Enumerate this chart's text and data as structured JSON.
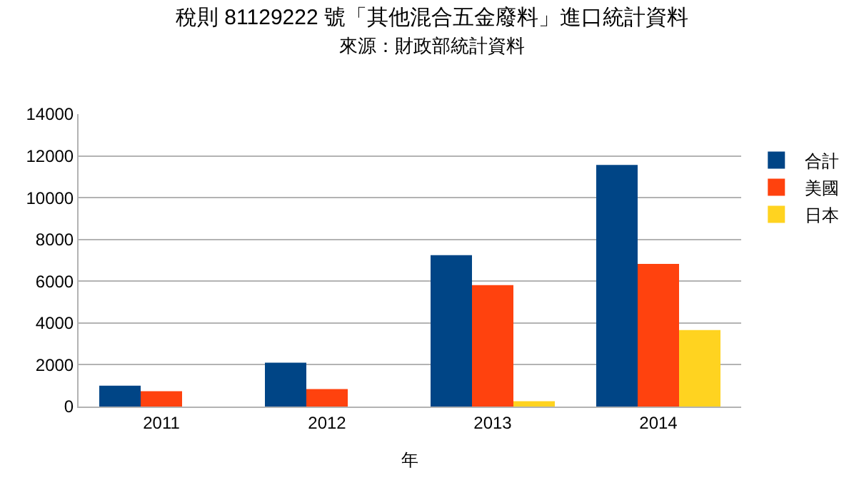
{
  "chart_data": {
    "type": "bar",
    "title": "稅則 81129222 號「其他混合五金廢料」進口統計資料",
    "subtitle": "來源：財政部統計資料",
    "xlabel": "年",
    "categories": [
      "2011",
      "2012",
      "2013",
      "2014"
    ],
    "series": [
      {
        "name": "合計",
        "color": "#004586",
        "values": [
          1000,
          2100,
          7250,
          11570
        ]
      },
      {
        "name": "美國",
        "color": "#ff420e",
        "values": [
          730,
          840,
          5810,
          6830
        ]
      },
      {
        "name": "日本",
        "color": "#ffd320",
        "values": [
          null,
          null,
          260,
          3660
        ]
      }
    ],
    "ylim": [
      0,
      14000
    ],
    "yticks": [
      0,
      2000,
      4000,
      6000,
      8000,
      10000,
      12000,
      14000
    ],
    "grid": "y",
    "legend": "right"
  }
}
